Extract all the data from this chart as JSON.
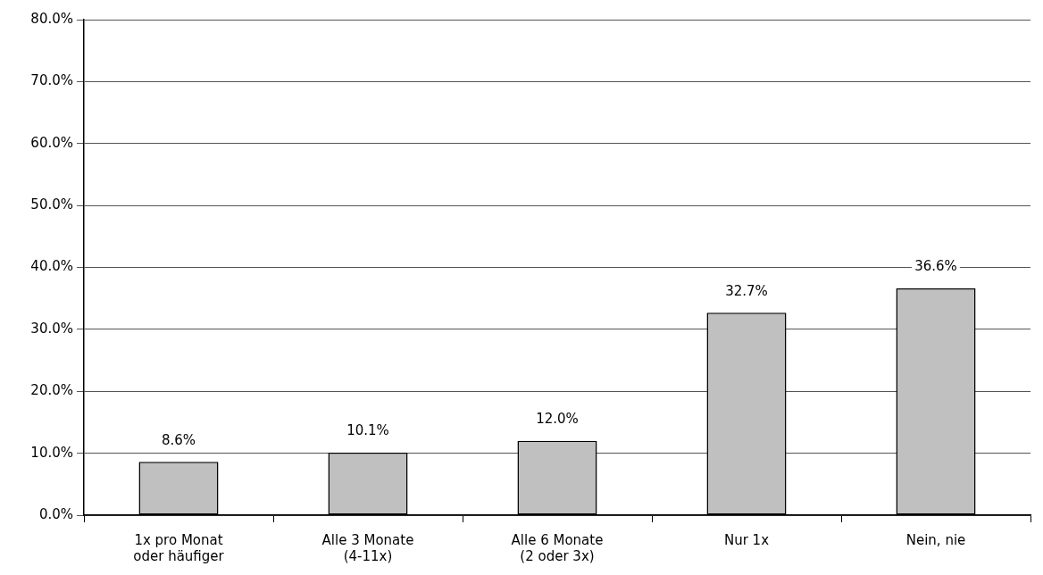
{
  "chart_data": {
    "type": "bar",
    "categories": [
      "1x pro Monat\noder häufiger",
      "Alle 3 Monate\n(4-11x)",
      "Alle 6 Monate\n(2 oder 3x)",
      "Nur 1x",
      "Nein, nie"
    ],
    "values": [
      8.6,
      10.1,
      12.0,
      32.7,
      36.6
    ],
    "color": "#c0c0c0",
    "value_labels": [
      "8.6%",
      "10.1%",
      "12.0%",
      "32.7%",
      "36.6%"
    ],
    "ylim": [
      0,
      80
    ],
    "yticks": [
      {
        "value": 0,
        "label": "0.0%"
      },
      {
        "value": 10,
        "label": "10.0%"
      },
      {
        "value": 20,
        "label": "20.0%"
      },
      {
        "value": 30,
        "label": "30.0%"
      },
      {
        "value": 40,
        "label": "40.0%"
      },
      {
        "value": 50,
        "label": "50.0%"
      },
      {
        "value": 60,
        "label": "60.0%"
      },
      {
        "value": 70,
        "label": "70.0%"
      },
      {
        "value": 80,
        "label": "80.0%"
      }
    ],
    "grid": "y"
  }
}
